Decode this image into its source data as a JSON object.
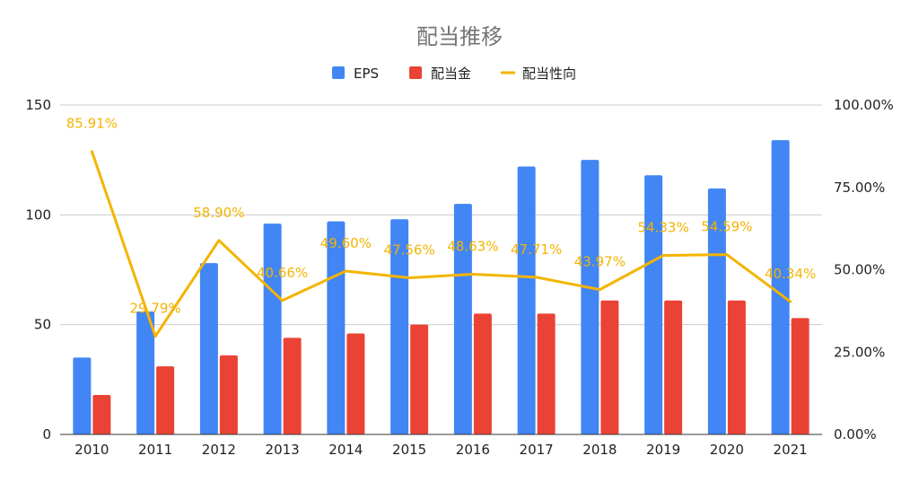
{
  "chart_data": {
    "type": "bar",
    "title": "配当推移",
    "categories": [
      "2010",
      "2011",
      "2012",
      "2013",
      "2014",
      "2015",
      "2016",
      "2017",
      "2018",
      "2019",
      "2020",
      "2021"
    ],
    "series": [
      {
        "name": "EPS",
        "kind": "bar",
        "axis": "left",
        "color": "#4285f4",
        "values": [
          35,
          56,
          78,
          96,
          97,
          98,
          105,
          122,
          125,
          118,
          112,
          134
        ]
      },
      {
        "name": "配当金",
        "kind": "bar",
        "axis": "left",
        "color": "#ea4335",
        "values": [
          18,
          31,
          36,
          44,
          46,
          50,
          55,
          55,
          61,
          61,
          61,
          53
        ]
      },
      {
        "name": "配当性向",
        "kind": "line",
        "axis": "right",
        "color": "#f4b400",
        "values": [
          85.91,
          29.79,
          58.9,
          40.66,
          49.6,
          47.56,
          48.63,
          47.71,
          43.97,
          54.33,
          54.59,
          40.34
        ],
        "labels": [
          "85.91%",
          "29.79%",
          "58.90%",
          "40.66%",
          "49.60%",
          "47.56%",
          "48.63%",
          "47.71%",
          "43.97%",
          "54.33%",
          "54.59%",
          "40.34%"
        ]
      }
    ],
    "y_left": {
      "min": 0,
      "max": 150,
      "ticks": [
        0,
        50,
        100,
        150
      ],
      "tick_labels": [
        "0",
        "50",
        "100",
        "150"
      ]
    },
    "y_right": {
      "min": 0,
      "max": 100,
      "ticks": [
        0,
        25,
        50,
        75,
        100
      ],
      "tick_labels": [
        "0.00%",
        "25.00%",
        "50.00%",
        "75.00%",
        "100.00%"
      ]
    },
    "legend": "top-center",
    "grid": true
  }
}
